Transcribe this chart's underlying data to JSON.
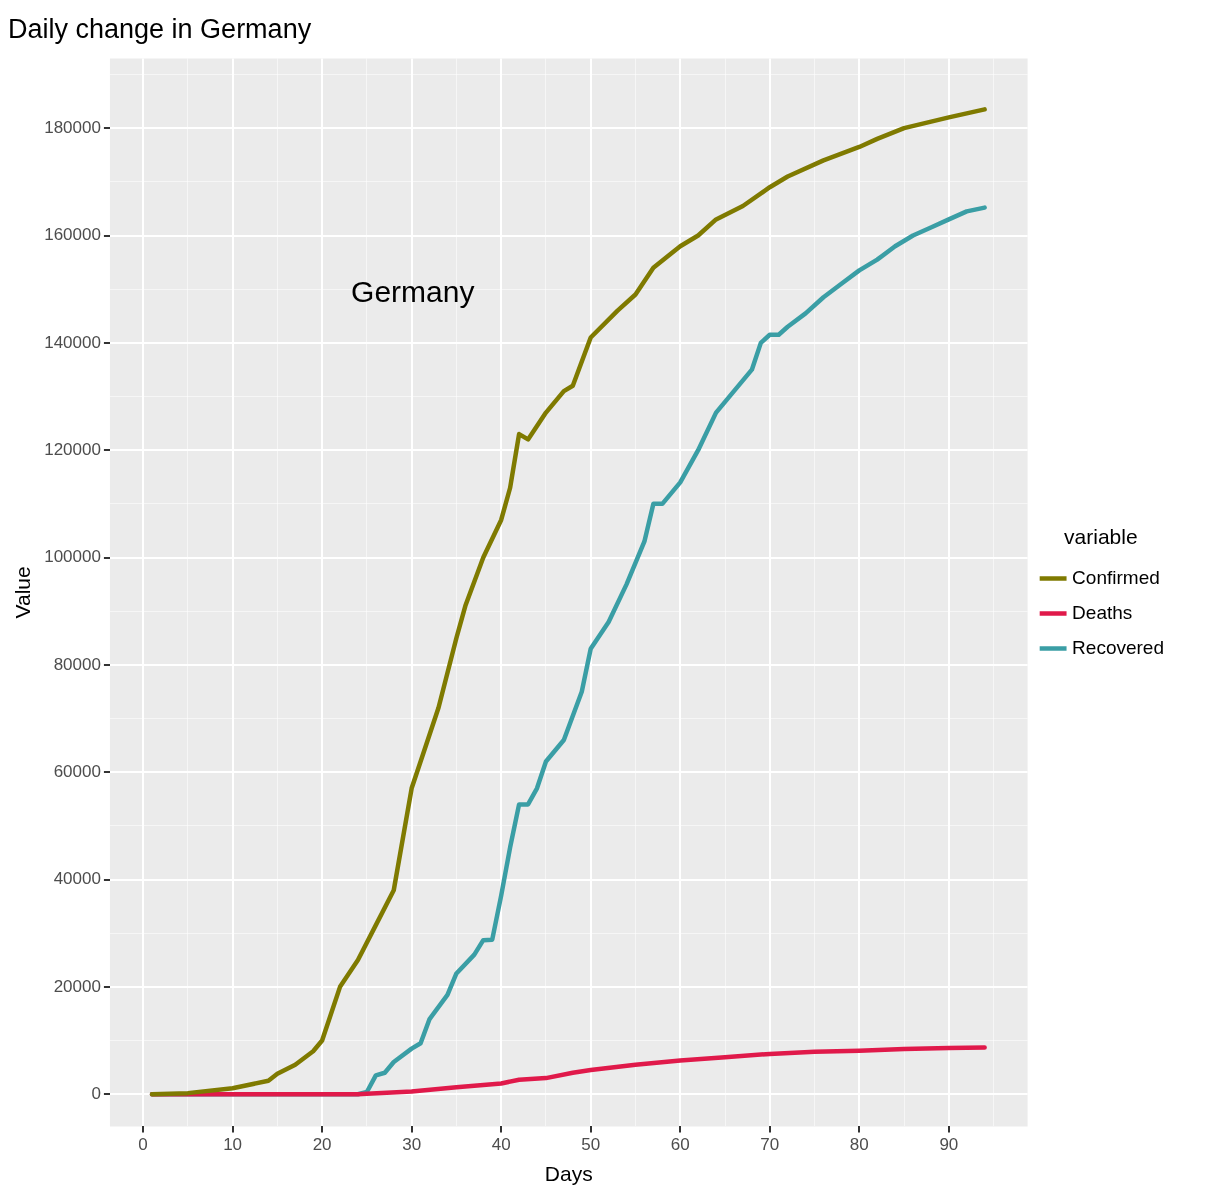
{
  "chart_data": {
    "type": "line",
    "title": "Daily change in Germany",
    "xlabel": "Days",
    "ylabel": "Value",
    "legend_title": "variable",
    "legend": "right",
    "grid": true,
    "annotations": [
      "Germany"
    ],
    "xlim": [
      -3.7,
      98.8
    ],
    "ylim": [
      -6000,
      193000
    ],
    "xticks": [
      0,
      {
        "value": 5,
        "label": null
      },
      10,
      {
        "value": 15,
        "label": null
      },
      20,
      {
        "value": 25,
        "label": null
      },
      30,
      {
        "value": 35,
        "label": null
      },
      40,
      {
        "value": 45,
        "label": null
      },
      50,
      {
        "value": 55,
        "label": null
      },
      60,
      {
        "value": 65,
        "label": null
      },
      70,
      {
        "value": 75,
        "label": null
      },
      80,
      {
        "value": 85,
        "label": null
      },
      90,
      {
        "value": 95,
        "label": null
      }
    ],
    "yticks": [
      0,
      {
        "value": 10000,
        "label": null
      },
      20000,
      {
        "value": 30000,
        "label": null
      },
      40000,
      {
        "value": 50000,
        "label": null
      },
      60000,
      {
        "value": 70000,
        "label": null
      },
      80000,
      {
        "value": 90000,
        "label": null
      },
      100000,
      {
        "value": 110000,
        "label": null
      },
      120000,
      {
        "value": 130000,
        "label": null
      },
      140000,
      {
        "value": 150000,
        "label": null
      },
      160000,
      {
        "value": 170000,
        "label": null
      },
      180000,
      {
        "value": 190000,
        "label": null
      }
    ],
    "series": [
      {
        "name": "Confirmed",
        "color": "#7f7a00",
        "x": [
          1,
          5,
          10,
          14,
          15,
          17,
          19,
          20,
          22,
          24,
          26,
          28,
          30,
          31,
          33,
          35,
          36,
          38,
          40,
          41,
          42,
          43,
          45,
          47,
          48,
          50,
          53,
          55,
          57,
          60,
          62,
          64,
          67,
          70,
          72,
          76,
          80,
          82,
          85,
          90,
          94
        ],
        "values": [
          0,
          200,
          1100,
          2500,
          3800,
          5500,
          8000,
          10000,
          20000,
          25000,
          31500,
          38000,
          57000,
          62000,
          72000,
          85000,
          91000,
          100000,
          107000,
          113000,
          123000,
          122000,
          127000,
          131000,
          132000,
          141000,
          146000,
          149000,
          154000,
          158000,
          160000,
          163000,
          165500,
          169000,
          171000,
          174000,
          176500,
          178000,
          180000,
          182000,
          183500
        ]
      },
      {
        "name": "Deaths",
        "color": "#e0194a",
        "x": [
          1,
          24,
          25,
          30,
          35,
          40,
          42,
          45,
          48,
          50,
          55,
          60,
          65,
          70,
          75,
          80,
          85,
          90,
          94
        ],
        "values": [
          0,
          0,
          100,
          500,
          1300,
          2000,
          2700,
          3000,
          4000,
          4500,
          5500,
          6300,
          6900,
          7500,
          7900,
          8100,
          8400,
          8600,
          8700
        ]
      },
      {
        "name": "Recovered",
        "color": "#3a9ea5",
        "x": [
          1,
          24,
          25,
          26,
          27,
          28,
          30,
          31,
          32,
          34,
          35,
          37,
          38,
          39,
          40,
          41,
          42,
          43,
          44,
          45,
          47,
          49,
          50,
          52,
          54,
          56,
          57,
          58,
          60,
          62,
          64,
          66,
          68,
          69,
          70,
          71,
          72,
          74,
          76,
          78,
          80,
          82,
          84,
          86,
          88,
          90,
          92,
          94
        ],
        "values": [
          0,
          0,
          400,
          3500,
          4000,
          6000,
          8500,
          9500,
          14000,
          18500,
          22500,
          26000,
          28700,
          28800,
          37000,
          46000,
          54000,
          54000,
          57000,
          62000,
          66000,
          75000,
          83000,
          88000,
          95000,
          103000,
          110000,
          110000,
          114000,
          120000,
          127000,
          131000,
          135000,
          140000,
          141500,
          141500,
          143000,
          145500,
          148500,
          151000,
          153500,
          155500,
          158000,
          160000,
          161500,
          163000,
          164500,
          165200
        ]
      }
    ]
  }
}
